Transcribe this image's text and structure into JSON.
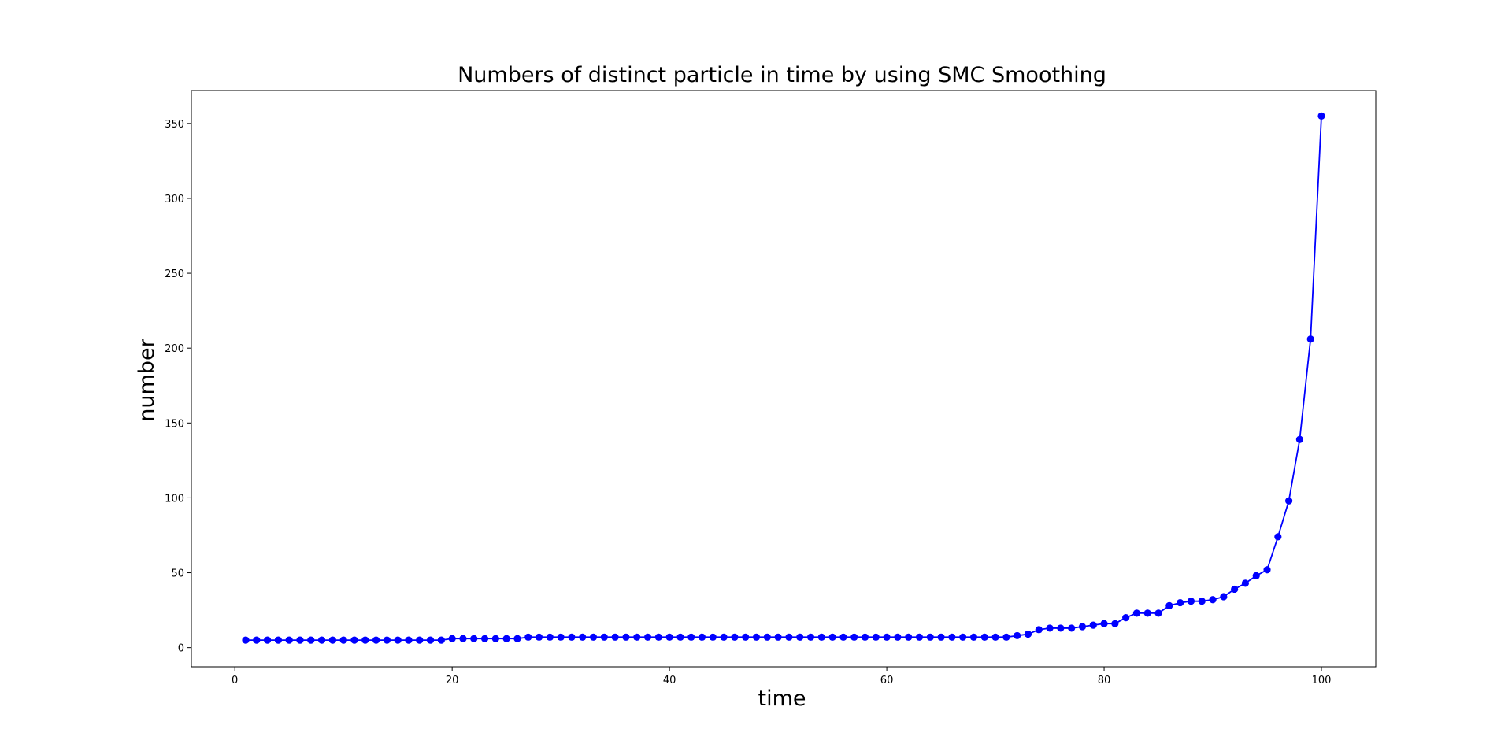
{
  "chart_data": {
    "type": "line",
    "title": "Numbers of distinct particle in time by using SMC Smoothing",
    "xlabel": "time",
    "ylabel": "number",
    "xlim": [
      -4,
      105
    ],
    "ylim": [
      -12.8,
      372
    ],
    "xticks": [
      0,
      20,
      40,
      60,
      80,
      100
    ],
    "yticks": [
      0,
      50,
      100,
      150,
      200,
      250,
      300,
      350
    ],
    "grid": false,
    "legend": "none",
    "series_color": "#0000ff",
    "marker": "circle",
    "x": [
      1,
      2,
      3,
      4,
      5,
      6,
      7,
      8,
      9,
      10,
      11,
      12,
      13,
      14,
      15,
      16,
      17,
      18,
      19,
      20,
      21,
      22,
      23,
      24,
      25,
      26,
      27,
      28,
      29,
      30,
      31,
      32,
      33,
      34,
      35,
      36,
      37,
      38,
      39,
      40,
      41,
      42,
      43,
      44,
      45,
      46,
      47,
      48,
      49,
      50,
      51,
      52,
      53,
      54,
      55,
      56,
      57,
      58,
      59,
      60,
      61,
      62,
      63,
      64,
      65,
      66,
      67,
      68,
      69,
      70,
      71,
      72,
      73,
      74,
      75,
      76,
      77,
      78,
      79,
      80,
      81,
      82,
      83,
      84,
      85,
      86,
      87,
      88,
      89,
      90,
      91,
      92,
      93,
      94,
      95,
      96,
      97,
      98,
      99,
      100
    ],
    "y": [
      5,
      5,
      5,
      5,
      5,
      5,
      5,
      5,
      5,
      5,
      5,
      5,
      5,
      5,
      5,
      5,
      5,
      5,
      5,
      6,
      6,
      6,
      6,
      6,
      6,
      6,
      7,
      7,
      7,
      7,
      7,
      7,
      7,
      7,
      7,
      7,
      7,
      7,
      7,
      7,
      7,
      7,
      7,
      7,
      7,
      7,
      7,
      7,
      7,
      7,
      7,
      7,
      7,
      7,
      7,
      7,
      7,
      7,
      7,
      7,
      7,
      7,
      7,
      7,
      7,
      7,
      7,
      7,
      7,
      7,
      7,
      8,
      9,
      12,
      13,
      13,
      13,
      14,
      15,
      16,
      16,
      20,
      23,
      23,
      23,
      28,
      30,
      31,
      31,
      32,
      34,
      39,
      43,
      48,
      52,
      74,
      98,
      139,
      206,
      355
    ]
  }
}
